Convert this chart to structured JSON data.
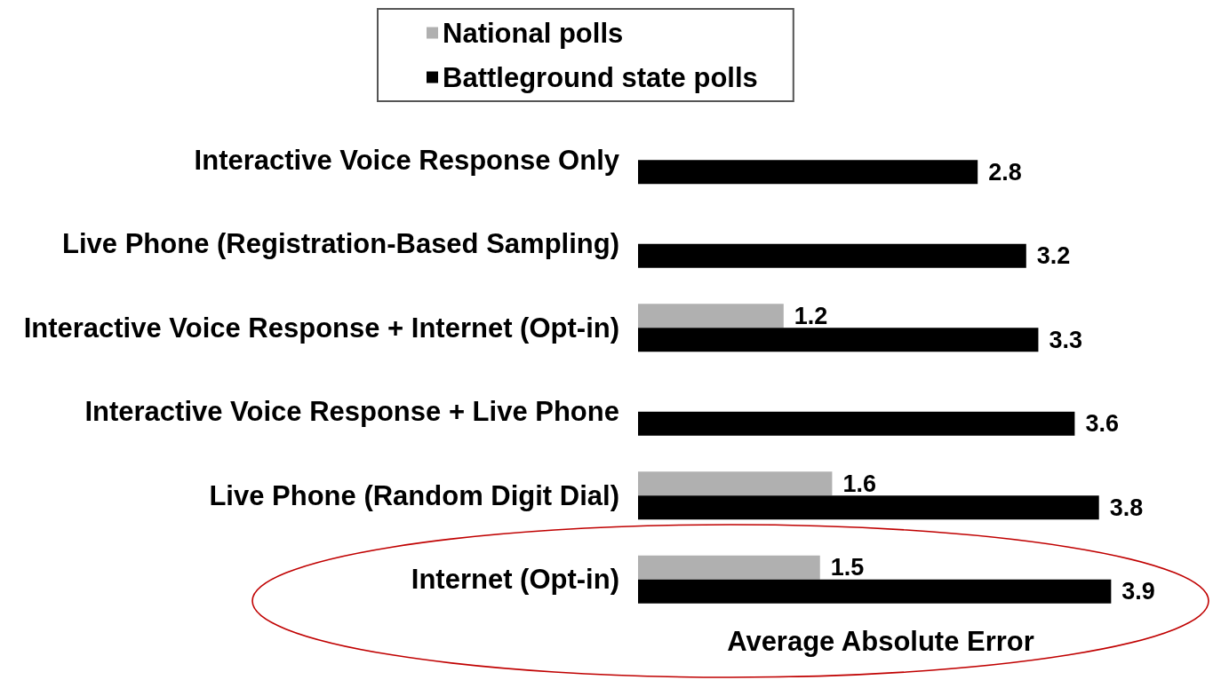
{
  "chart_data": {
    "type": "bar",
    "orientation": "horizontal",
    "categories": [
      "Interactive Voice Response Only",
      "Live Phone (Registration-Based Sampling)",
      "Interactive Voice Response + Internet (Opt-in)",
      "Interactive Voice Response + Live Phone",
      "Live Phone (Random Digit Dial)",
      "Internet (Opt-in)"
    ],
    "series": [
      {
        "name": "National polls",
        "color": "#b0b0b0",
        "values": [
          null,
          null,
          1.2,
          null,
          1.6,
          1.5
        ]
      },
      {
        "name": "Battleground state polls",
        "color": "#000000",
        "values": [
          2.8,
          3.2,
          3.3,
          3.6,
          3.8,
          3.9
        ]
      }
    ],
    "xlabel": "Average Absolute Error",
    "data_labels": true,
    "legend": "top",
    "grid": false,
    "tick_labels": "y"
  }
}
